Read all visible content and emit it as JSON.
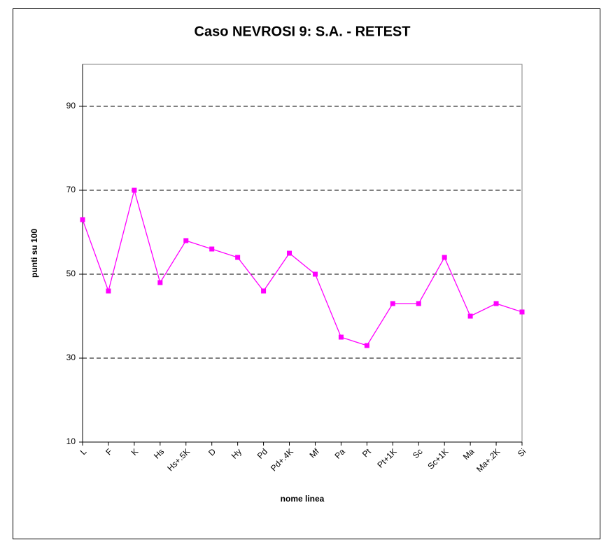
{
  "chart_data": {
    "type": "line",
    "title": "Caso NEVROSI 9: S.A. - RETEST",
    "x_label": "nome linea",
    "y_label": "punti su 100",
    "categories": [
      "L",
      "F",
      "K",
      "Hs",
      "Hs+.5K",
      "D",
      "Hy",
      "Pd",
      "Pd+.4K",
      "Mf",
      "Pa",
      "Pt",
      "Pt+1K",
      "Sc",
      "Sc+1K",
      "Ma",
      "Ma+.2K",
      "Si"
    ],
    "series": [
      {
        "name": "S.A. - RETEST",
        "color": "#ff00ff",
        "values": [
          63,
          46,
          70,
          48,
          58,
          56,
          54,
          46,
          55,
          50,
          35,
          33,
          43,
          43,
          54,
          40,
          43,
          41
        ]
      }
    ],
    "ylim": [
      10,
      100
    ],
    "yticks": [
      10,
      30,
      50,
      70,
      90
    ],
    "grid": true
  }
}
